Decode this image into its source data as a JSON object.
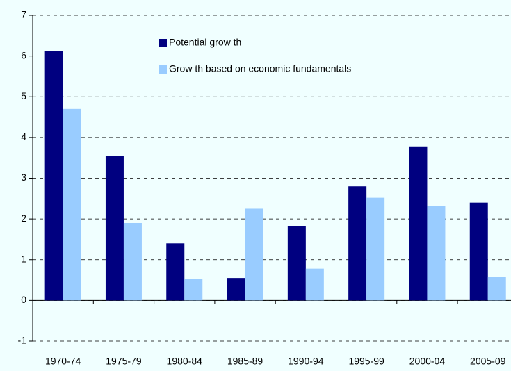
{
  "chart_data": {
    "type": "bar",
    "categories": [
      "1970-74",
      "1975-79",
      "1980-84",
      "1985-89",
      "1990-94",
      "1995-99",
      "2000-04",
      "2005-09"
    ],
    "series": [
      {
        "name": "Potential grow th",
        "color": "#000080",
        "values": [
          6.13,
          3.55,
          1.4,
          0.55,
          1.82,
          2.8,
          3.78,
          2.4
        ]
      },
      {
        "name": "Grow th based on economic fundamentals",
        "color": "#99ccff",
        "values": [
          4.7,
          1.9,
          0.52,
          2.25,
          0.78,
          2.52,
          2.32,
          0.58
        ]
      }
    ],
    "ylim": [
      -1,
      7
    ],
    "yticks": [
      -1,
      0,
      1,
      2,
      3,
      4,
      5,
      6,
      7
    ],
    "grid": true
  }
}
